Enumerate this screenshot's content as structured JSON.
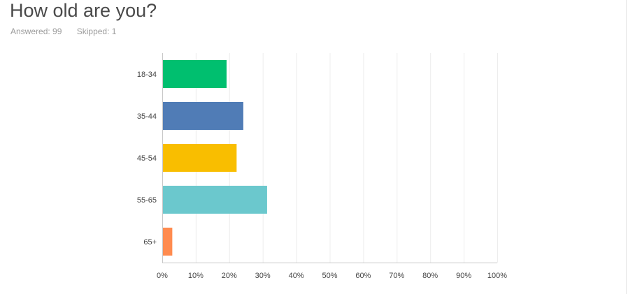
{
  "question": {
    "title": "How old are you?",
    "answered": "Answered: 99",
    "skipped": "Skipped: 1"
  },
  "chart_data": {
    "type": "bar",
    "orientation": "horizontal",
    "categories": [
      "18-34",
      "35-44",
      "45-54",
      "55-65",
      "65+"
    ],
    "values": [
      19.2,
      24.2,
      22.2,
      31.3,
      3.0
    ],
    "colors": [
      "#00bf6f",
      "#507cb6",
      "#f9be00",
      "#6bc8cd",
      "#ff8b4f"
    ],
    "xlim": [
      0,
      100
    ],
    "xticks": [
      0,
      10,
      20,
      30,
      40,
      50,
      60,
      70,
      80,
      90,
      100
    ],
    "xtick_labels": [
      "0%",
      "10%",
      "20%",
      "30%",
      "40%",
      "50%",
      "60%",
      "70%",
      "80%",
      "90%",
      "100%"
    ],
    "grid": true,
    "title": "",
    "xlabel": "",
    "ylabel": ""
  }
}
